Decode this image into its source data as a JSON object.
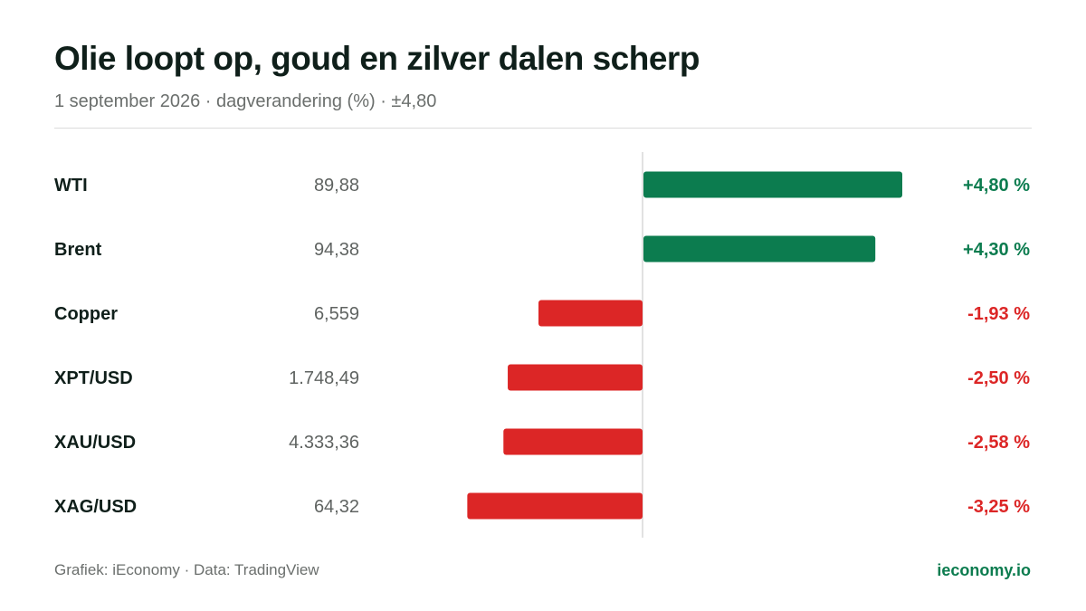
{
  "header": {
    "title": "Olie loopt op, goud en zilver dalen scherp",
    "subtitle": "1 september 2026 · dagverandering (%) · ±4,80"
  },
  "footer": {
    "credit": "Grafiek: iEconomy · Data: TradingView",
    "site": "ieconomy.io"
  },
  "colors": {
    "positive": "#0c7c4f",
    "negative": "#dc2626",
    "label": "#0f1f1a",
    "price": "#5f6361",
    "axis": "#d9d9d9"
  },
  "chart_data": {
    "type": "bar",
    "orientation": "horizontal",
    "xlim": [
      -4.8,
      4.8
    ],
    "categories": [
      "WTI",
      "Brent",
      "Copper",
      "XPT/USD",
      "XAU/USD",
      "XAG/USD"
    ],
    "prices": [
      "89,88",
      "94,38",
      "6,559",
      "1.748,49",
      "4.333,36",
      "64,32"
    ],
    "values": [
      4.8,
      4.3,
      -1.93,
      -2.5,
      -2.58,
      -3.25
    ],
    "value_labels": [
      "+4,80 %",
      "+4,30 %",
      "-1,93 %",
      "-2,50 %",
      "-2,58 %",
      "-3,25 %"
    ]
  }
}
